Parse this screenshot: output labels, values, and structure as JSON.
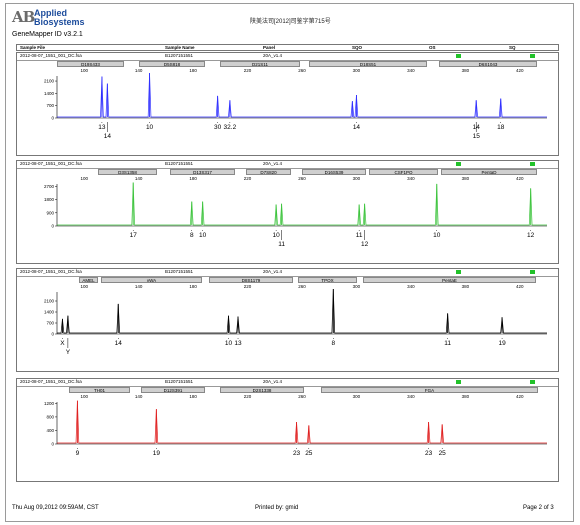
{
  "header": {
    "logo_mark": "AB",
    "logo_line1": "Applied",
    "logo_line2": "Biosystems",
    "version": "GeneMapper ID v3.2.1",
    "document_no": "陕美法司[2012]司鉴字第715号"
  },
  "columns": {
    "sample_file": "Sample File",
    "sample_name": "Sample Name",
    "panel": "Panel",
    "sqo": "SQO",
    "os": "OS",
    "sq": "SQ"
  },
  "colors": {
    "blue": "#3030ff",
    "green": "#3ec43e",
    "black": "#000000",
    "red": "#e02020",
    "ok": "#22c22a"
  },
  "axis": {
    "x_ticks": [
      "100",
      "140",
      "180",
      "220",
      "260",
      "300",
      "340",
      "380",
      "420"
    ]
  },
  "panels": [
    {
      "sample_file": "2012-08-07_1551_001_DC.fsa",
      "sample_name": "B1207151551",
      "panel": "20A_v1.4",
      "color": "#3030ff",
      "markers": [
        "D19S433",
        "D5S818",
        "D21S11",
        "D18S51",
        "D6S1043"
      ],
      "y_ticks": [
        "2100",
        "1400",
        "700",
        "0"
      ],
      "allele_labels": [
        "13",
        "14",
        "10",
        "30",
        "32.2",
        "14",
        "15",
        "14",
        "18"
      ]
    },
    {
      "sample_file": "2012-08-07_1551_001_DC.fsa",
      "sample_name": "B1207151551",
      "panel": "20A_v1.4",
      "color": "#3ec43e",
      "markers": [
        "D3S1358",
        "D13S317",
        "D7S820",
        "D16S539",
        "CSF1PO",
        "PentaD"
      ],
      "y_ticks": [
        "2700",
        "1800",
        "900",
        "0"
      ],
      "allele_labels": [
        "17",
        "8",
        "10",
        "10",
        "11",
        "11",
        "12",
        "10",
        "12"
      ]
    },
    {
      "sample_file": "2012-08-07_1551_001_DC.fsa",
      "sample_name": "B1207151551",
      "panel": "20A_v1.4",
      "color": "#000000",
      "markers": [
        "AMEL",
        "vWA",
        "D8S1179",
        "TPOX",
        "PentaE"
      ],
      "y_ticks": [
        "2100",
        "1400",
        "700",
        "0"
      ],
      "allele_labels": [
        "X",
        "Y",
        "14",
        "10",
        "13",
        "8",
        "11",
        "19"
      ]
    },
    {
      "sample_file": "2012-08-07_1551_001_DC.fsa",
      "sample_name": "B1207151551",
      "panel": "20A_v1.4",
      "color": "#e02020",
      "markers": [
        "TH01",
        "D12S391",
        "D2S1338",
        "FGA"
      ],
      "y_ticks": [
        "1200",
        "800",
        "400",
        "0"
      ],
      "allele_labels": [
        "9",
        "19",
        "23",
        "25",
        "23",
        "25"
      ]
    }
  ],
  "chart_data": [
    {
      "type": "line",
      "title": "",
      "xlabel": "",
      "ylabel": "",
      "xlim": [
        80,
        440
      ],
      "ylim": [
        0,
        2500
      ],
      "series": [
        {
          "peaks": [
            {
              "x": 113,
              "y": 2300
            },
            {
              "x": 117,
              "y": 1900
            },
            {
              "x": 148,
              "y": 2500
            },
            {
              "x": 198,
              "y": 1200
            },
            {
              "x": 207,
              "y": 950
            },
            {
              "x": 297,
              "y": 900
            },
            {
              "x": 300,
              "y": 1250
            },
            {
              "x": 388,
              "y": 950
            },
            {
              "x": 406,
              "y": 1050
            }
          ]
        }
      ]
    },
    {
      "type": "line",
      "title": "",
      "xlabel": "",
      "ylabel": "",
      "xlim": [
        80,
        440
      ],
      "ylim": [
        0,
        3000
      ],
      "series": [
        {
          "peaks": [
            {
              "x": 136,
              "y": 2900
            },
            {
              "x": 179,
              "y": 1600
            },
            {
              "x": 187,
              "y": 1600
            },
            {
              "x": 241,
              "y": 1400
            },
            {
              "x": 245,
              "y": 1450
            },
            {
              "x": 302,
              "y": 1400
            },
            {
              "x": 306,
              "y": 1450
            },
            {
              "x": 359,
              "y": 2800
            },
            {
              "x": 428,
              "y": 2500
            }
          ]
        }
      ]
    },
    {
      "type": "line",
      "title": "",
      "xlabel": "",
      "ylabel": "",
      "xlim": [
        80,
        440
      ],
      "ylim": [
        0,
        2800
      ],
      "series": [
        {
          "peaks": [
            {
              "x": 84,
              "y": 900
            },
            {
              "x": 88,
              "y": 1100
            },
            {
              "x": 125,
              "y": 1850
            },
            {
              "x": 206,
              "y": 1100
            },
            {
              "x": 213,
              "y": 1050
            },
            {
              "x": 283,
              "y": 2800
            },
            {
              "x": 367,
              "y": 1250
            },
            {
              "x": 407,
              "y": 1000
            }
          ]
        }
      ]
    },
    {
      "type": "line",
      "title": "",
      "xlabel": "",
      "ylabel": "",
      "xlim": [
        80,
        440
      ],
      "ylim": [
        0,
        1300
      ],
      "series": [
        {
          "peaks": [
            {
              "x": 95,
              "y": 1250
            },
            {
              "x": 153,
              "y": 1000
            },
            {
              "x": 256,
              "y": 620
            },
            {
              "x": 265,
              "y": 520
            },
            {
              "x": 353,
              "y": 620
            },
            {
              "x": 363,
              "y": 550
            }
          ]
        }
      ]
    }
  ],
  "footer": {
    "date": "Thu Aug 09,2012 09:59AM, CST",
    "printed_by": "Printed by: gmid",
    "page": "Page 2 of 3"
  }
}
